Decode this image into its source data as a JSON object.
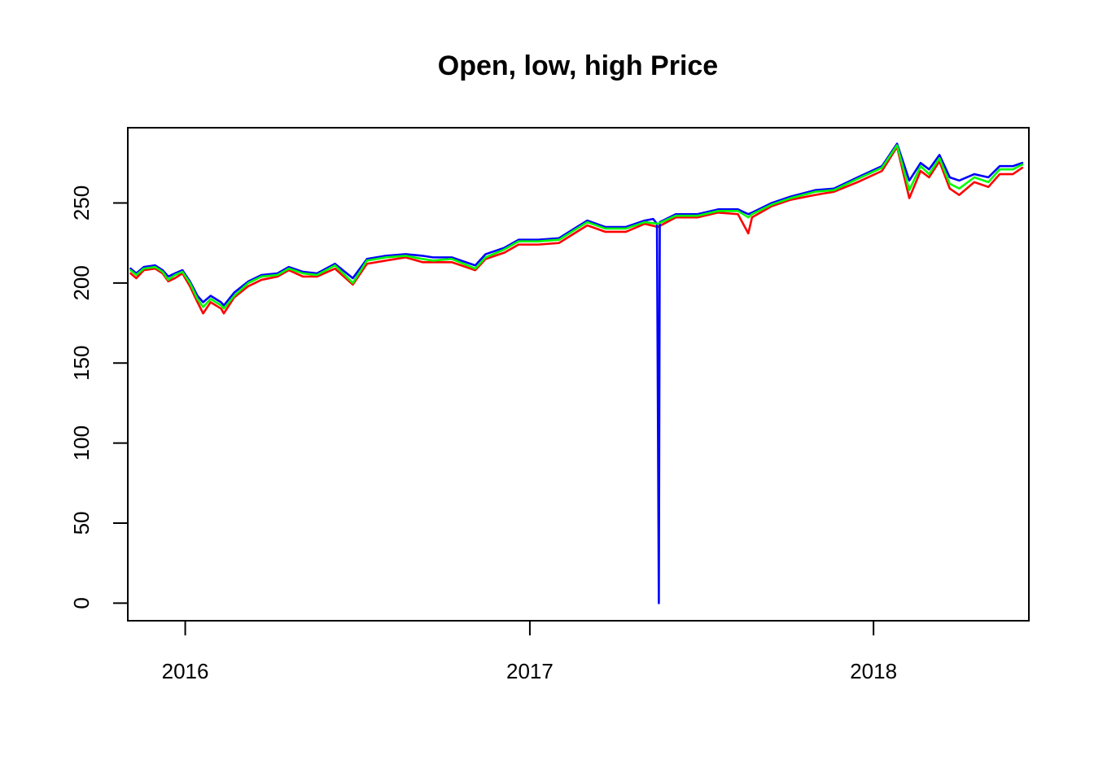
{
  "chart_data": {
    "type": "line",
    "title": "Open, low, high Price",
    "xlabel": "",
    "ylabel": "",
    "xlim": [
      "2015-11-01",
      "2018-06-15"
    ],
    "ylim": [
      -11,
      297
    ],
    "grid": false,
    "x_ticks": [
      {
        "date": "2016-01-01",
        "label": "2016"
      },
      {
        "date": "2017-01-01",
        "label": "2017"
      },
      {
        "date": "2018-01-01",
        "label": "2018"
      }
    ],
    "y_ticks": [
      0,
      50,
      100,
      150,
      200,
      250
    ],
    "series": [
      {
        "color": "#ff0000",
        "points": [
          [
            "2015-11-04",
            206
          ],
          [
            "2015-11-10",
            203
          ],
          [
            "2015-11-18",
            208
          ],
          [
            "2015-11-30",
            209
          ],
          [
            "2015-12-08",
            206
          ],
          [
            "2015-12-14",
            201
          ],
          [
            "2015-12-21",
            203
          ],
          [
            "2015-12-29",
            206
          ],
          [
            "2016-01-06",
            198
          ],
          [
            "2016-01-14",
            188
          ],
          [
            "2016-01-20",
            181
          ],
          [
            "2016-01-28",
            188
          ],
          [
            "2016-02-08",
            184
          ],
          [
            "2016-02-11",
            181
          ],
          [
            "2016-02-22",
            191
          ],
          [
            "2016-03-08",
            198
          ],
          [
            "2016-03-22",
            202
          ],
          [
            "2016-04-08",
            204
          ],
          [
            "2016-04-20",
            208
          ],
          [
            "2016-05-05",
            204
          ],
          [
            "2016-05-20",
            204
          ],
          [
            "2016-06-08",
            209
          ],
          [
            "2016-06-27",
            199
          ],
          [
            "2016-07-12",
            212
          ],
          [
            "2016-08-01",
            214
          ],
          [
            "2016-08-22",
            216
          ],
          [
            "2016-09-09",
            213
          ],
          [
            "2016-09-20",
            213
          ],
          [
            "2016-10-10",
            213
          ],
          [
            "2016-11-04",
            208
          ],
          [
            "2016-11-15",
            215
          ],
          [
            "2016-12-05",
            219
          ],
          [
            "2016-12-20",
            224
          ],
          [
            "2017-01-10",
            224
          ],
          [
            "2017-02-01",
            225
          ],
          [
            "2017-02-20",
            232
          ],
          [
            "2017-03-03",
            236
          ],
          [
            "2017-03-22",
            232
          ],
          [
            "2017-04-13",
            232
          ],
          [
            "2017-05-03",
            237
          ],
          [
            "2017-05-17",
            235
          ],
          [
            "2017-06-05",
            241
          ],
          [
            "2017-06-28",
            241
          ],
          [
            "2017-07-20",
            244
          ],
          [
            "2017-08-10",
            243
          ],
          [
            "2017-08-21",
            231
          ],
          [
            "2017-08-25",
            241
          ],
          [
            "2017-09-15",
            248
          ],
          [
            "2017-10-05",
            252
          ],
          [
            "2017-10-31",
            255
          ],
          [
            "2017-11-20",
            257
          ],
          [
            "2017-12-15",
            263
          ],
          [
            "2018-01-10",
            270
          ],
          [
            "2018-01-26",
            285
          ],
          [
            "2018-02-08",
            253
          ],
          [
            "2018-02-20",
            270
          ],
          [
            "2018-03-01",
            266
          ],
          [
            "2018-03-12",
            276
          ],
          [
            "2018-03-23",
            259
          ],
          [
            "2018-04-02",
            255
          ],
          [
            "2018-04-18",
            263
          ],
          [
            "2018-05-03",
            260
          ],
          [
            "2018-05-15",
            268
          ],
          [
            "2018-05-29",
            268
          ],
          [
            "2018-06-08",
            272
          ]
        ]
      },
      {
        "color": "#0000ff",
        "points": [
          [
            "2015-11-04",
            209
          ],
          [
            "2015-11-10",
            206
          ],
          [
            "2015-11-18",
            210
          ],
          [
            "2015-11-30",
            211
          ],
          [
            "2015-12-08",
            208
          ],
          [
            "2015-12-14",
            204
          ],
          [
            "2015-12-21",
            206
          ],
          [
            "2015-12-29",
            208
          ],
          [
            "2016-01-06",
            201
          ],
          [
            "2016-01-14",
            192
          ],
          [
            "2016-01-20",
            188
          ],
          [
            "2016-01-28",
            192
          ],
          [
            "2016-02-08",
            188
          ],
          [
            "2016-02-11",
            186
          ],
          [
            "2016-02-22",
            194
          ],
          [
            "2016-03-08",
            201
          ],
          [
            "2016-03-22",
            205
          ],
          [
            "2016-04-08",
            206
          ],
          [
            "2016-04-20",
            210
          ],
          [
            "2016-05-05",
            207
          ],
          [
            "2016-05-20",
            206
          ],
          [
            "2016-06-08",
            212
          ],
          [
            "2016-06-27",
            203
          ],
          [
            "2016-07-12",
            215
          ],
          [
            "2016-08-01",
            217
          ],
          [
            "2016-08-22",
            218
          ],
          [
            "2016-09-09",
            217
          ],
          [
            "2016-09-20",
            216
          ],
          [
            "2016-10-10",
            216
          ],
          [
            "2016-11-04",
            211
          ],
          [
            "2016-11-15",
            218
          ],
          [
            "2016-12-05",
            222
          ],
          [
            "2016-12-20",
            227
          ],
          [
            "2017-01-10",
            227
          ],
          [
            "2017-02-01",
            228
          ],
          [
            "2017-02-20",
            235
          ],
          [
            "2017-03-03",
            239
          ],
          [
            "2017-03-22",
            235
          ],
          [
            "2017-04-13",
            235
          ],
          [
            "2017-05-03",
            239
          ],
          [
            "2017-05-12",
            240
          ],
          [
            "2017-05-16",
            237
          ],
          [
            "2017-05-18",
            0
          ],
          [
            "2017-05-19",
            238
          ],
          [
            "2017-06-05",
            243
          ],
          [
            "2017-06-28",
            243
          ],
          [
            "2017-07-20",
            246
          ],
          [
            "2017-08-10",
            246
          ],
          [
            "2017-08-21",
            243
          ],
          [
            "2017-08-25",
            244
          ],
          [
            "2017-09-15",
            250
          ],
          [
            "2017-10-05",
            254
          ],
          [
            "2017-10-31",
            258
          ],
          [
            "2017-11-20",
            259
          ],
          [
            "2017-12-15",
            266
          ],
          [
            "2018-01-10",
            273
          ],
          [
            "2018-01-26",
            287
          ],
          [
            "2018-02-08",
            264
          ],
          [
            "2018-02-20",
            275
          ],
          [
            "2018-03-01",
            271
          ],
          [
            "2018-03-12",
            280
          ],
          [
            "2018-03-23",
            266
          ],
          [
            "2018-04-02",
            264
          ],
          [
            "2018-04-18",
            268
          ],
          [
            "2018-05-03",
            266
          ],
          [
            "2018-05-15",
            273
          ],
          [
            "2018-05-29",
            273
          ],
          [
            "2018-06-08",
            275
          ]
        ]
      },
      {
        "color": "#00ff00",
        "points": [
          [
            "2015-11-04",
            208
          ],
          [
            "2015-11-10",
            205
          ],
          [
            "2015-11-18",
            209
          ],
          [
            "2015-11-30",
            210
          ],
          [
            "2015-12-08",
            207
          ],
          [
            "2015-12-14",
            202
          ],
          [
            "2015-12-21",
            205
          ],
          [
            "2015-12-29",
            207
          ],
          [
            "2016-01-06",
            200
          ],
          [
            "2016-01-14",
            190
          ],
          [
            "2016-01-20",
            185
          ],
          [
            "2016-01-28",
            190
          ],
          [
            "2016-02-08",
            186
          ],
          [
            "2016-02-11",
            184
          ],
          [
            "2016-02-22",
            192
          ],
          [
            "2016-03-08",
            200
          ],
          [
            "2016-03-22",
            204
          ],
          [
            "2016-04-08",
            205
          ],
          [
            "2016-04-20",
            209
          ],
          [
            "2016-05-05",
            206
          ],
          [
            "2016-05-20",
            205
          ],
          [
            "2016-06-08",
            211
          ],
          [
            "2016-06-27",
            200
          ],
          [
            "2016-07-12",
            214
          ],
          [
            "2016-08-01",
            216
          ],
          [
            "2016-08-22",
            217
          ],
          [
            "2016-09-09",
            215
          ],
          [
            "2016-09-20",
            214
          ],
          [
            "2016-10-10",
            215
          ],
          [
            "2016-11-04",
            209
          ],
          [
            "2016-11-15",
            216
          ],
          [
            "2016-12-05",
            221
          ],
          [
            "2016-12-20",
            226
          ],
          [
            "2017-01-10",
            226
          ],
          [
            "2017-02-01",
            227
          ],
          [
            "2017-02-20",
            234
          ],
          [
            "2017-03-03",
            238
          ],
          [
            "2017-03-22",
            234
          ],
          [
            "2017-04-13",
            234
          ],
          [
            "2017-05-03",
            238
          ],
          [
            "2017-05-17",
            237
          ],
          [
            "2017-06-05",
            242
          ],
          [
            "2017-06-28",
            242
          ],
          [
            "2017-07-20",
            245
          ],
          [
            "2017-08-10",
            245
          ],
          [
            "2017-08-21",
            241
          ],
          [
            "2017-08-25",
            243
          ],
          [
            "2017-09-15",
            249
          ],
          [
            "2017-10-05",
            253
          ],
          [
            "2017-10-31",
            257
          ],
          [
            "2017-11-20",
            258
          ],
          [
            "2017-12-15",
            265
          ],
          [
            "2018-01-10",
            272
          ],
          [
            "2018-01-26",
            286
          ],
          [
            "2018-02-08",
            258
          ],
          [
            "2018-02-20",
            273
          ],
          [
            "2018-03-01",
            268
          ],
          [
            "2018-03-12",
            278
          ],
          [
            "2018-03-23",
            262
          ],
          [
            "2018-04-02",
            259
          ],
          [
            "2018-04-18",
            266
          ],
          [
            "2018-05-03",
            263
          ],
          [
            "2018-05-15",
            271
          ],
          [
            "2018-05-29",
            271
          ],
          [
            "2018-06-08",
            274
          ]
        ]
      }
    ]
  }
}
